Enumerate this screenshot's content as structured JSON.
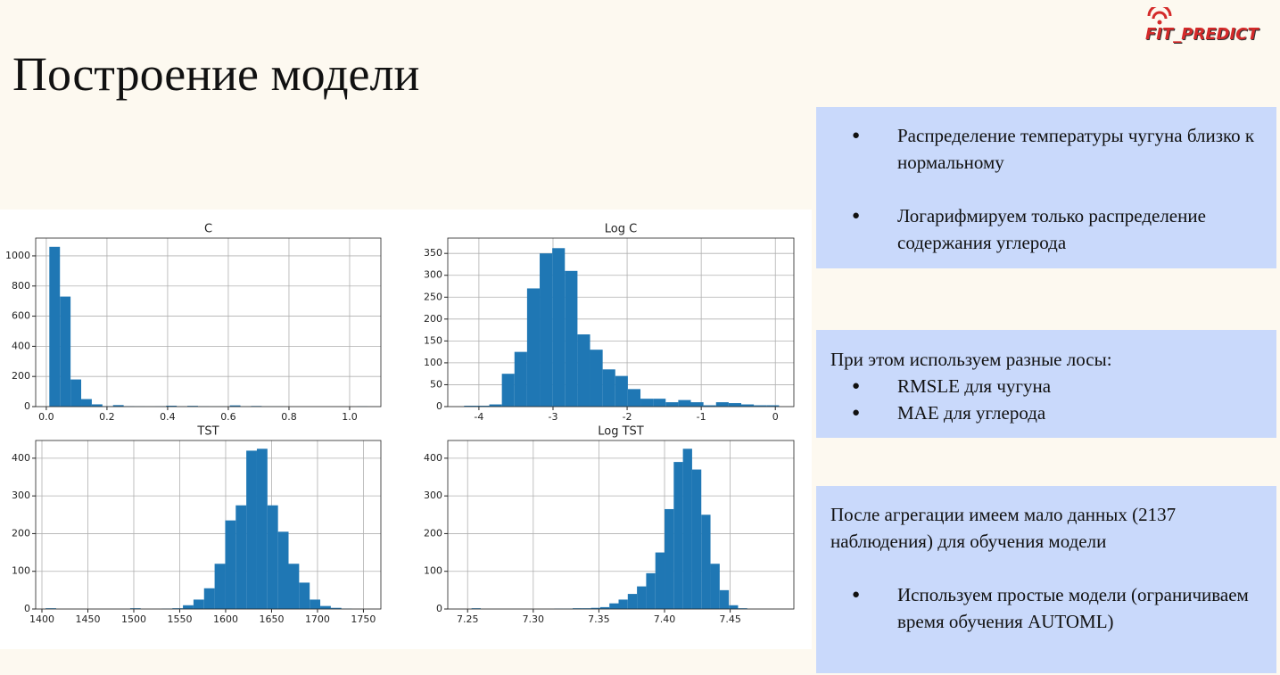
{
  "title": "Построение модели",
  "logo": "FIT_PREDICT",
  "chart_data": [
    {
      "type": "histogram",
      "title": "C",
      "color": "#1f77b4",
      "grid": true,
      "bins": [
        0.01,
        0.045,
        0.08,
        0.115,
        0.15,
        0.185,
        0.22,
        0.255,
        0.29,
        0.325,
        0.36,
        0.395,
        0.43,
        0.465,
        0.5,
        0.535,
        0.57,
        0.605,
        0.64,
        0.675,
        0.71,
        0.745,
        0.78,
        0.815,
        0.85,
        0.885,
        0.92,
        0.955,
        0.99,
        1.025,
        1.06
      ],
      "values": [
        1060,
        730,
        180,
        50,
        15,
        3,
        10,
        3,
        2,
        1,
        2,
        6,
        1,
        5,
        2,
        1,
        1,
        8,
        1,
        4,
        1,
        1,
        0,
        0,
        0,
        0,
        0,
        0,
        0,
        2
      ],
      "xlim": [
        -0.035,
        1.103
      ],
      "xticks": [
        {
          "value": 0,
          "label": "0.0"
        },
        0.2,
        0.4,
        0.6,
        0.8,
        {
          "value": 1,
          "label": "1.0"
        }
      ],
      "ylim": [
        0,
        1118
      ],
      "yticks": [
        0,
        200,
        400,
        600,
        800,
        1000
      ]
    },
    {
      "type": "histogram",
      "title": "Log C",
      "color": "#1f77b4",
      "grid": true,
      "bins": [
        -4.2,
        -4.03,
        -3.86,
        -3.69,
        -3.52,
        -3.35,
        -3.18,
        -3.01,
        -2.84,
        -2.67,
        -2.5,
        -2.33,
        -2.16,
        -1.99,
        -1.82,
        -1.65,
        -1.48,
        -1.31,
        -1.14,
        -0.97,
        -0.8,
        -0.63,
        -0.46,
        -0.29,
        -0.12,
        0.05
      ],
      "values": [
        2,
        2,
        5,
        75,
        125,
        270,
        350,
        362,
        310,
        165,
        130,
        85,
        70,
        40,
        18,
        18,
        10,
        15,
        10,
        3,
        10,
        8,
        5,
        3,
        3
      ],
      "xlim": [
        -4.42,
        0.25
      ],
      "xticks": [
        -4,
        -3,
        -2,
        -1,
        0
      ],
      "ylim": [
        0,
        385
      ],
      "yticks": [
        0,
        50,
        100,
        150,
        200,
        250,
        300,
        350
      ]
    },
    {
      "type": "histogram",
      "title": "TST",
      "color": "#1f77b4",
      "grid": true,
      "bins": [
        1404,
        1415.5,
        1427,
        1438.5,
        1450,
        1461.5,
        1473,
        1484.5,
        1496,
        1507.5,
        1519,
        1530.5,
        1542,
        1553.5,
        1565,
        1576.5,
        1588,
        1599.5,
        1611,
        1622.5,
        1634,
        1645.5,
        1657,
        1668.5,
        1680,
        1691.5,
        1703,
        1714.5,
        1726,
        1737.5,
        1749
      ],
      "values": [
        2,
        0,
        0,
        0,
        0,
        0,
        0,
        0,
        2,
        0,
        0,
        1,
        2,
        10,
        25,
        55,
        120,
        235,
        275,
        420,
        425,
        275,
        205,
        120,
        70,
        25,
        8,
        3,
        1,
        0
      ],
      "xlim": [
        1393.2,
        1769
      ],
      "xticks": [
        1400,
        1450,
        1500,
        1550,
        1600,
        1650,
        1700,
        1750
      ],
      "ylim": [
        0,
        447
      ],
      "yticks": [
        0,
        100,
        200,
        300,
        400
      ]
    },
    {
      "type": "histogram",
      "title": "Log TST",
      "color": "#1f77b4",
      "grid": true,
      "bins": [
        7.253,
        7.26,
        7.267,
        7.274,
        7.281,
        7.288,
        7.295,
        7.302,
        7.309,
        7.316,
        7.323,
        7.33,
        7.337,
        7.344,
        7.351,
        7.358,
        7.365,
        7.372,
        7.379,
        7.386,
        7.393,
        7.4,
        7.407,
        7.414,
        7.421,
        7.428,
        7.435,
        7.442,
        7.449,
        7.456,
        7.463
      ],
      "values": [
        2,
        0,
        0,
        0,
        0,
        0,
        0,
        0,
        0,
        1,
        1,
        2,
        2,
        3,
        5,
        15,
        25,
        40,
        60,
        95,
        150,
        265,
        390,
        425,
        370,
        250,
        120,
        50,
        10,
        2
      ],
      "xlim": [
        7.2349,
        7.4985
      ],
      "xticks": [
        7.25,
        {
          "value": 7.3,
          "label": "7.30"
        },
        7.35,
        {
          "value": 7.4,
          "label": "7.40"
        },
        7.45
      ],
      "ylim": [
        0,
        447
      ],
      "yticks": [
        0,
        100,
        200,
        300,
        400
      ]
    }
  ],
  "boxes": [
    {
      "bullets": [
        "Распределение температуры чугуна близко к нормальному",
        "Логарифмируем только распределение содержания углерода"
      ]
    },
    {
      "text": "При этом используем разные лосы:",
      "bullets": [
        "RMSLE для чугуна",
        "MAE для углерода"
      ]
    },
    {
      "text": "После агрегации имеем мало данных (2137 наблюдения)  для обучения модели",
      "bullets": [
        "Используем простые модели (ограничиваем время обучения AUTOML)"
      ]
    }
  ]
}
